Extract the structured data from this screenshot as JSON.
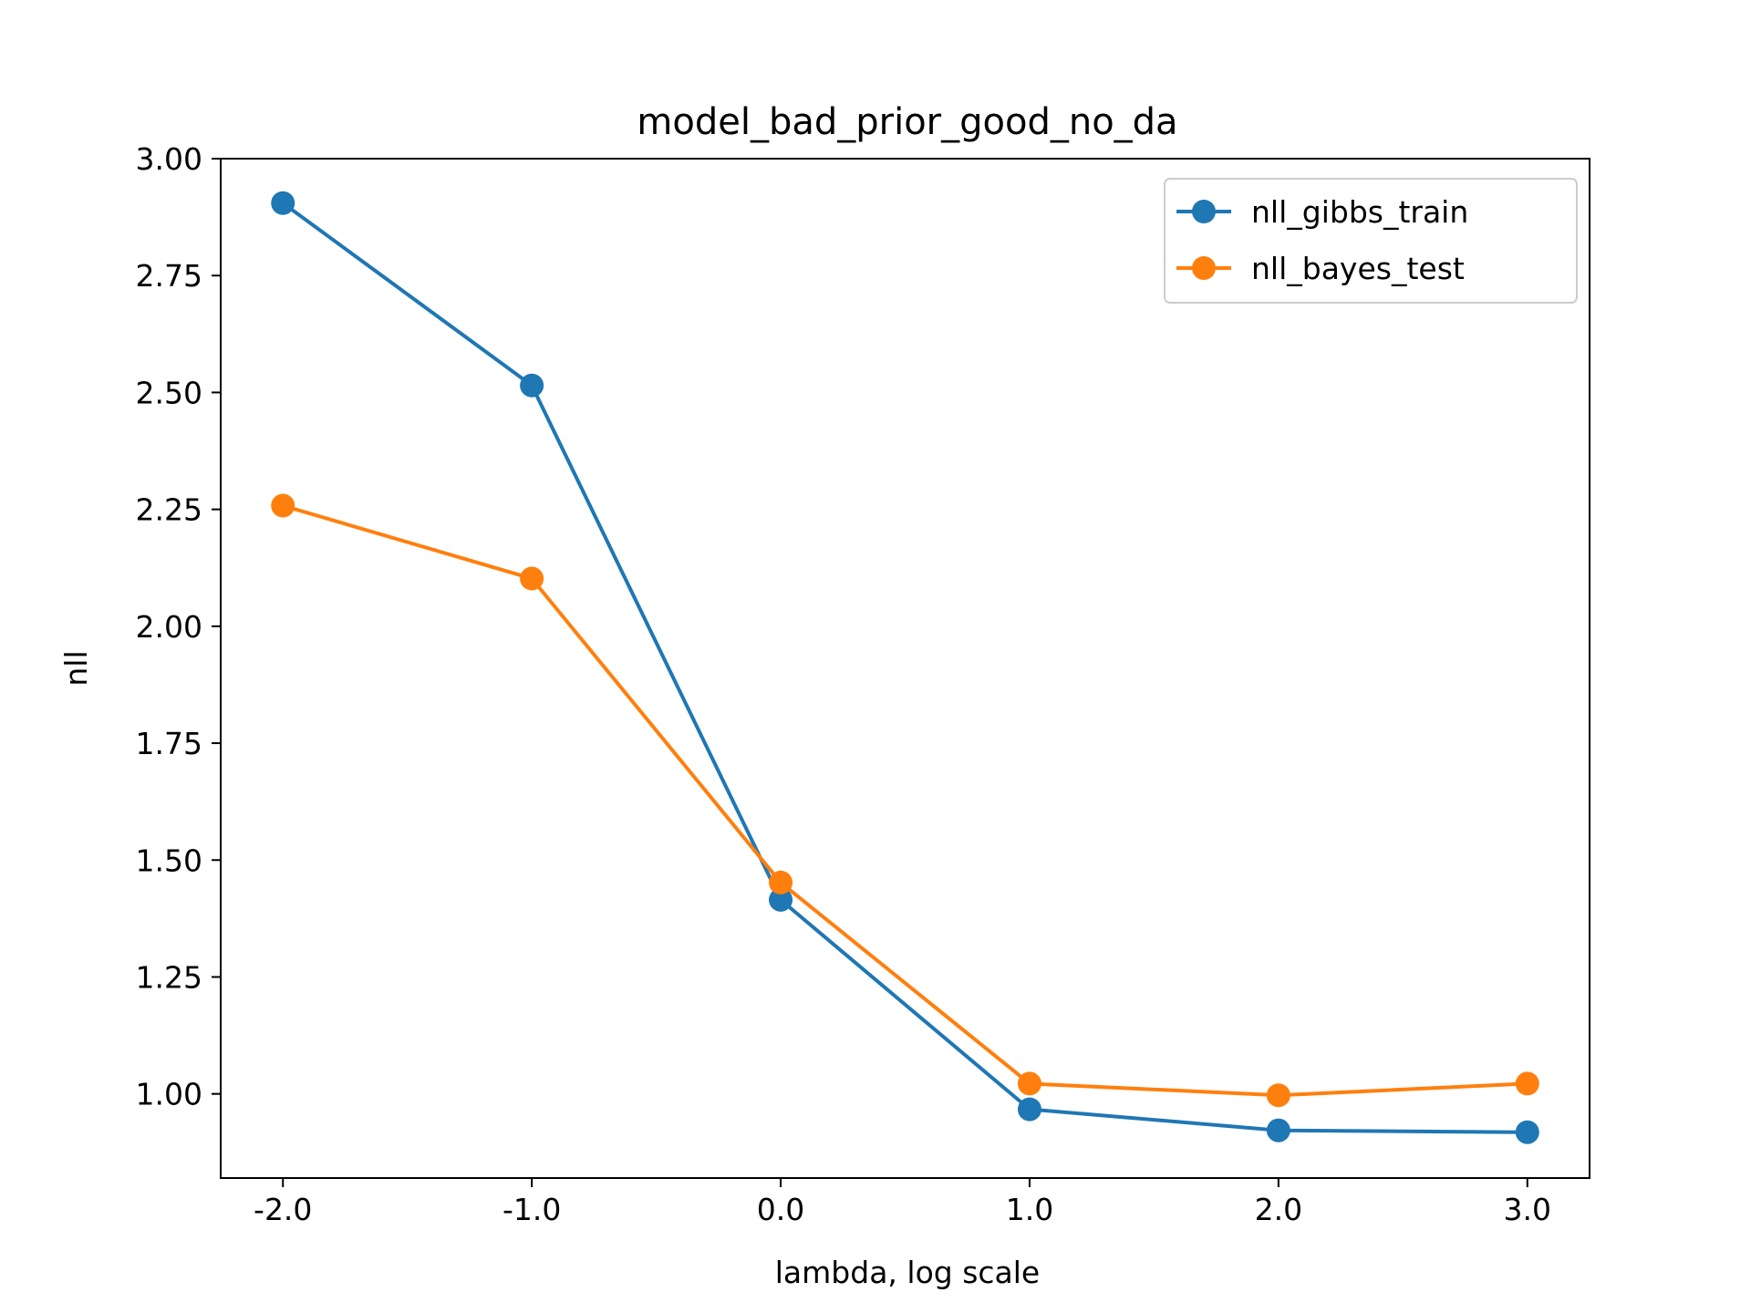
{
  "chart_data": {
    "type": "line",
    "title": "model_bad_prior_good_no_da",
    "xlabel": "lambda, log scale",
    "ylabel": "nll",
    "x": [
      -2.0,
      -1.0,
      0.0,
      1.0,
      2.0,
      3.0
    ],
    "x_tick_labels": [
      "-2.0",
      "-1.0",
      "0.0",
      "1.0",
      "2.0",
      "3.0"
    ],
    "y_ticks": [
      1.0,
      1.25,
      1.5,
      1.75,
      2.0,
      2.25,
      2.5,
      2.75,
      3.0
    ],
    "y_tick_labels": [
      "1.00",
      "1.25",
      "1.50",
      "1.75",
      "2.00",
      "2.25",
      "2.50",
      "2.75",
      "3.00"
    ],
    "xlim": [
      -2.25,
      3.25
    ],
    "ylim": [
      0.82,
      3.0
    ],
    "grid": false,
    "legend_position": "top-right",
    "series": [
      {
        "name": "nll_gibbs_train",
        "color": "#1f77b4",
        "values": [
          2.905,
          2.515,
          1.415,
          0.967,
          0.922,
          0.918
        ]
      },
      {
        "name": "nll_bayes_test",
        "color": "#ff7f0e",
        "values": [
          2.258,
          2.102,
          1.452,
          1.022,
          0.997,
          1.022
        ]
      }
    ]
  }
}
